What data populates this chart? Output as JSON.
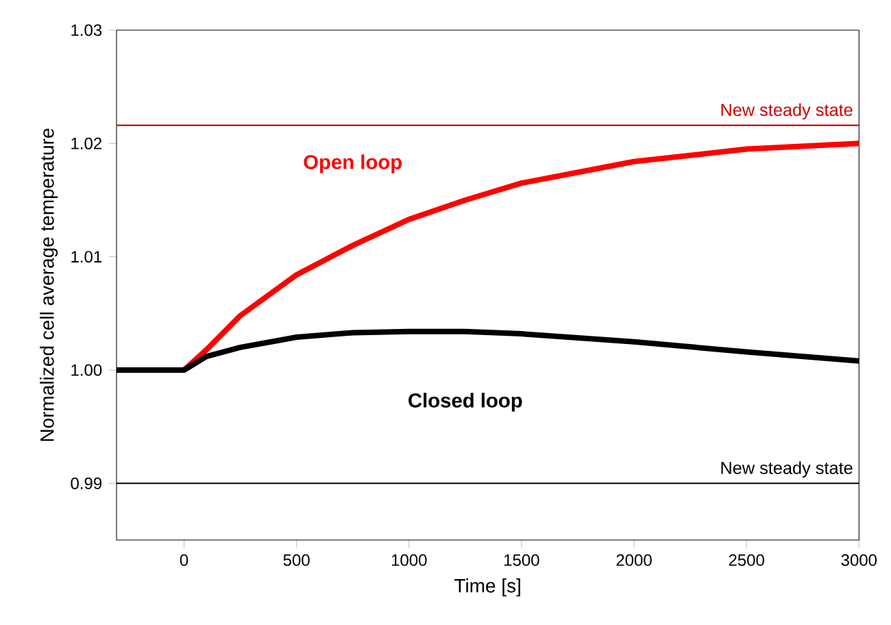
{
  "chart_data": {
    "type": "line",
    "xlabel": "Time [s]",
    "ylabel": "Normalized cell average temperature",
    "xlim": [
      -300,
      3000
    ],
    "ylim": [
      0.985,
      1.03
    ],
    "xticks": [
      0,
      500,
      1000,
      1500,
      2000,
      2500,
      3000
    ],
    "yticks": [
      {
        "value": 0.99,
        "label": "0.99"
      },
      {
        "value": 1.0,
        "label": "1.00"
      },
      {
        "value": 1.01,
        "label": "1.01"
      },
      {
        "value": 1.02,
        "label": "1.02"
      },
      {
        "value": 1.03,
        "label": "1.03"
      }
    ],
    "grid": false,
    "legend": false,
    "marker": "none",
    "line_style": "solid",
    "series": [
      {
        "name": "Open loop",
        "color": "#ff0000",
        "x": [
          -300,
          0,
          100,
          250,
          500,
          750,
          1000,
          1250,
          1500,
          2000,
          2500,
          3000
        ],
        "values": [
          1.0,
          1.0,
          1.0018,
          1.0048,
          1.0084,
          1.011,
          1.0133,
          1.015,
          1.0165,
          1.0184,
          1.0195,
          1.02
        ]
      },
      {
        "name": "Closed loop",
        "color": "#000000",
        "x": [
          -300,
          0,
          100,
          250,
          500,
          750,
          1000,
          1250,
          1500,
          2000,
          2500,
          3000
        ],
        "values": [
          1.0,
          1.0,
          1.0012,
          1.002,
          1.0029,
          1.0033,
          1.0034,
          1.0034,
          1.0032,
          1.0025,
          1.0016,
          1.0008
        ]
      }
    ],
    "ref_lines": [
      {
        "axis": "y",
        "value": 1.0216,
        "label": "New steady state",
        "color": "#cc0000"
      },
      {
        "axis": "y",
        "value": 0.99,
        "label": "New steady state",
        "color": "#000000"
      }
    ]
  }
}
